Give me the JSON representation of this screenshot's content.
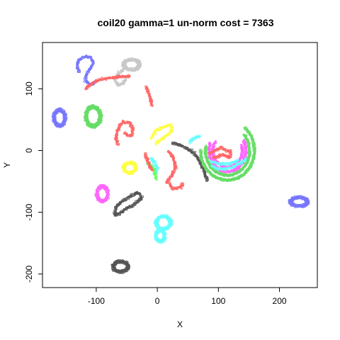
{
  "chart_data": {
    "type": "scatter",
    "title": "coil20 gamma=1 un-norm cost = 7363",
    "xlabel": "X",
    "ylabel": "Y",
    "xlim": [
      -188,
      262
    ],
    "ylim": [
      -222,
      175
    ],
    "xticks": [
      -100,
      0,
      100,
      200
    ],
    "yticks": [
      -200,
      -100,
      0,
      100
    ],
    "xtick_labels": [
      "-100",
      "0",
      "100",
      "200"
    ],
    "ytick_labels": [
      "-200",
      "-100",
      "0",
      "100"
    ],
    "grid": false,
    "legend": "none",
    "marker": "open-circle",
    "clusters": [
      {
        "color": "#7777ff",
        "kind": "path",
        "points": [
          [
            -128,
            127
          ],
          [
            -132,
            137
          ],
          [
            -128,
            147
          ],
          [
            -118,
            153
          ],
          [
            -108,
            150
          ],
          [
            -105,
            142
          ],
          [
            -110,
            132
          ],
          [
            -116,
            124
          ],
          [
            -118,
            114
          ],
          [
            -112,
            107
          ],
          [
            -104,
            108
          ],
          [
            -98,
            114
          ]
        ]
      },
      {
        "color": "#c8c8c8",
        "kind": "path",
        "points": [
          [
            -55,
            132
          ],
          [
            -64,
            125
          ],
          [
            -70,
            115
          ],
          [
            -64,
            106
          ],
          [
            -56,
            108
          ],
          [
            -52,
            118
          ]
        ]
      },
      {
        "color": "#c8c8c8",
        "kind": "ellipse",
        "cx": -42,
        "cy": 139,
        "rx": 14,
        "ry": 9
      },
      {
        "color": "#7777ff",
        "kind": "ellipse",
        "cx": -160,
        "cy": 53,
        "rx": 10,
        "ry": 14
      },
      {
        "color": "#66dd66",
        "kind": "ellipse",
        "cx": -105,
        "cy": 55,
        "rx": 13,
        "ry": 17
      },
      {
        "color": "#ff6666",
        "kind": "path",
        "points": [
          [
            -118,
            100
          ],
          [
            -105,
            110
          ],
          [
            -90,
            116
          ],
          [
            -72,
            118
          ],
          [
            -60,
            120
          ],
          [
            -44,
            120
          ]
        ]
      },
      {
        "color": "#ff6666",
        "kind": "path",
        "points": [
          [
            -18,
            103
          ],
          [
            -14,
            92
          ],
          [
            -10,
            80
          ],
          [
            -9,
            72
          ]
        ]
      },
      {
        "color": "#ff6666",
        "kind": "path",
        "points": [
          [
            -65,
            10
          ],
          [
            -68,
            20
          ],
          [
            -66,
            30
          ],
          [
            -62,
            40
          ],
          [
            -56,
            46
          ],
          [
            -46,
            45
          ],
          [
            -40,
            35
          ],
          [
            -42,
            25
          ],
          [
            -50,
            25
          ],
          [
            -54,
            30
          ]
        ]
      },
      {
        "color": "#ffff44",
        "kind": "path",
        "points": [
          [
            -10,
            20
          ],
          [
            -2,
            33
          ],
          [
            10,
            38
          ],
          [
            22,
            42
          ],
          [
            24,
            32
          ],
          [
            14,
            24
          ],
          [
            4,
            16
          ],
          [
            -4,
            10
          ]
        ]
      },
      {
        "color": "#ffff44",
        "kind": "ellipse",
        "cx": -45,
        "cy": -28,
        "rx": 11,
        "ry": 9
      },
      {
        "color": "#ff6666",
        "kind": "path",
        "points": [
          [
            18,
            -1
          ],
          [
            26,
            -11
          ],
          [
            30,
            -26
          ],
          [
            24,
            -40
          ],
          [
            16,
            -50
          ],
          [
            26,
            -62
          ],
          [
            38,
            -60
          ],
          [
            42,
            -52
          ]
        ]
      },
      {
        "color": "#555555",
        "kind": "path",
        "points": [
          [
            25,
            12
          ],
          [
            40,
            8
          ],
          [
            56,
            0
          ],
          [
            66,
            -12
          ],
          [
            73,
            -24
          ],
          [
            78,
            -36
          ],
          [
            82,
            -50
          ]
        ]
      },
      {
        "color": "#66ffff",
        "kind": "path",
        "points": [
          [
            52,
            14
          ],
          [
            60,
            20
          ],
          [
            70,
            23
          ]
        ]
      },
      {
        "color": "#66ffff",
        "kind": "path",
        "points": [
          [
            -10,
            -12
          ],
          [
            -4,
            -20
          ],
          [
            0,
            -30
          ],
          [
            -4,
            -38
          ]
        ]
      },
      {
        "color": "#66ff66",
        "kind": "path",
        "points": [
          [
            -15,
            -22
          ],
          [
            -8,
            -26
          ],
          [
            -5,
            -33
          ],
          [
            -2,
            -48
          ]
        ]
      },
      {
        "color": "#ff6666",
        "kind": "path",
        "points": [
          [
            -20,
            -6
          ],
          [
            -16,
            -16
          ],
          [
            -12,
            -26
          ],
          [
            -8,
            -32
          ]
        ]
      },
      {
        "color": "#66dd66",
        "kind": "arc",
        "cx": 115,
        "cy": 0,
        "rx": 44,
        "ry": 48,
        "a0": 180,
        "a1": 410
      },
      {
        "color": "#66dd66",
        "kind": "arc",
        "cx": 115,
        "cy": 0,
        "rx": 36,
        "ry": 40,
        "a0": 170,
        "a1": 400
      },
      {
        "color": "#ff66ff",
        "kind": "arc",
        "cx": 115,
        "cy": 0,
        "rx": 30,
        "ry": 34,
        "a0": 160,
        "a1": 390
      },
      {
        "color": "#ff66ff",
        "kind": "arc",
        "cx": 115,
        "cy": 0,
        "rx": 24,
        "ry": 27,
        "a0": 150,
        "a1": 380
      },
      {
        "color": "#66ffff",
        "kind": "path",
        "points": [
          [
            90,
            -25
          ],
          [
            100,
            -30
          ],
          [
            112,
            -30
          ],
          [
            126,
            -26
          ],
          [
            138,
            -20
          ],
          [
            147,
            -13
          ]
        ]
      },
      {
        "color": "#66ffff",
        "kind": "path",
        "points": [
          [
            88,
            -18
          ],
          [
            100,
            -22
          ],
          [
            118,
            -22
          ],
          [
            134,
            -16
          ]
        ]
      },
      {
        "color": "#ff6666",
        "kind": "path",
        "points": [
          [
            86,
            -5
          ],
          [
            95,
            0
          ],
          [
            104,
            5
          ],
          [
            112,
            0
          ],
          [
            120,
            -2
          ],
          [
            118,
            -12
          ],
          [
            108,
            -6
          ],
          [
            98,
            -10
          ],
          [
            90,
            -12
          ]
        ]
      },
      {
        "color": "#ff66ff",
        "kind": "ellipse",
        "cx": -90,
        "cy": -70,
        "rx": 10,
        "ry": 13
      },
      {
        "color": "#555555",
        "kind": "path",
        "points": [
          [
            -70,
            -105
          ],
          [
            -68,
            -92
          ],
          [
            -58,
            -82
          ],
          [
            -44,
            -74
          ],
          [
            -32,
            -68
          ],
          [
            -26,
            -76
          ],
          [
            -36,
            -86
          ],
          [
            -50,
            -94
          ],
          [
            -62,
            -102
          ],
          [
            -70,
            -105
          ]
        ]
      },
      {
        "color": "#66ffff",
        "kind": "ellipse",
        "cx": 5,
        "cy": -138,
        "rx": 8,
        "ry": 10
      },
      {
        "color": "#66ffff",
        "kind": "ellipse",
        "cx": 10,
        "cy": -117,
        "rx": 13,
        "ry": 11
      },
      {
        "color": "#555555",
        "kind": "ellipse",
        "cx": -60,
        "cy": -188,
        "rx": 13,
        "ry": 9
      },
      {
        "color": "#7777ff",
        "kind": "ellipse",
        "cx": 232,
        "cy": -83,
        "rx": 15,
        "ry": 8
      }
    ]
  }
}
